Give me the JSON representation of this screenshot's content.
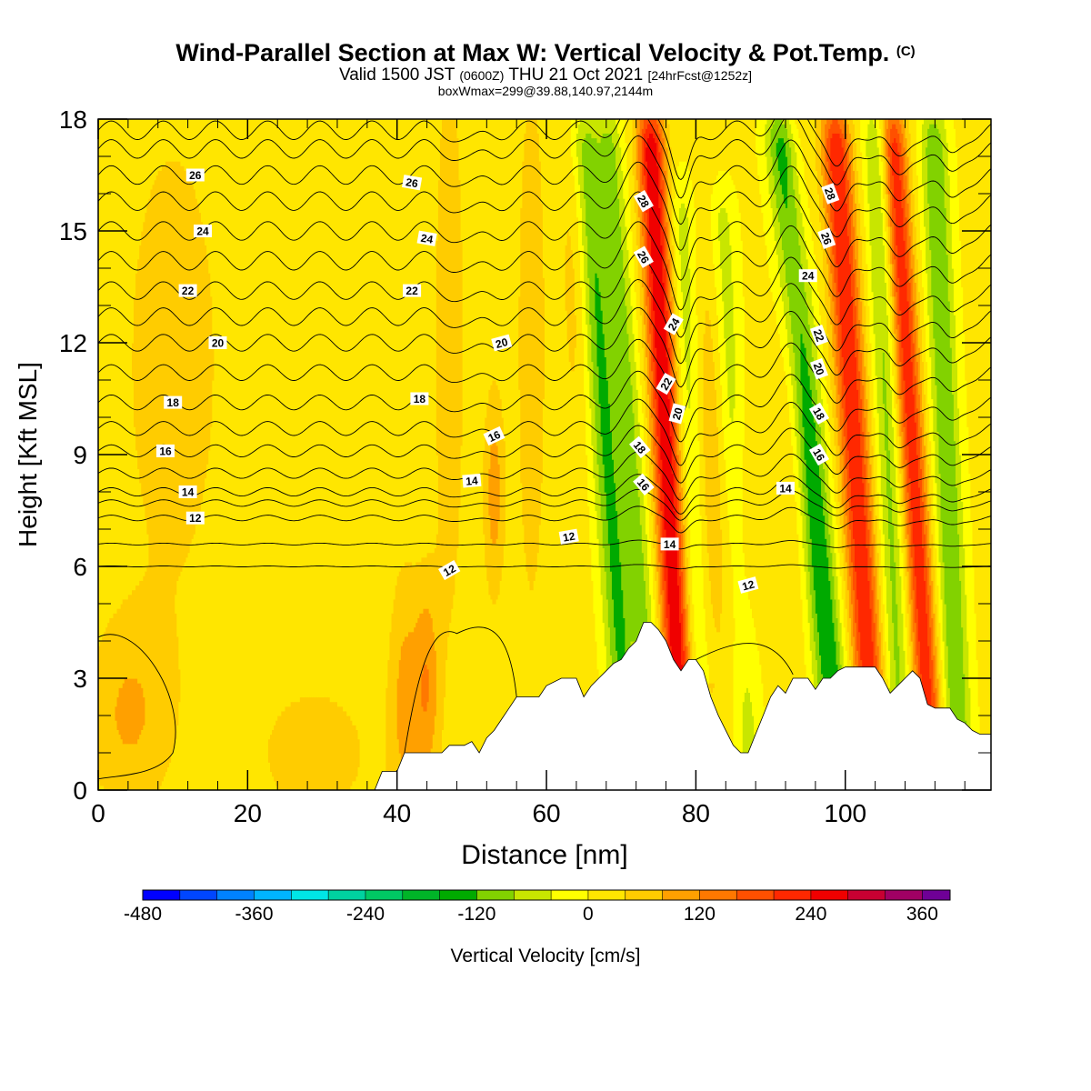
{
  "header": {
    "title": "Wind-Parallel Section at Max W: Vertical Velocity & Pot.Temp.",
    "title_mark": "(C)",
    "valid_prefix": "Valid 1500 JST",
    "valid_zulu": "(0600Z)",
    "valid_date": "THU 21 Oct 2021",
    "forecast_info": "[24hrFcst@1252z]",
    "box_info": "boxWmax=299@39.88,140.97,2144m"
  },
  "chart_data": {
    "type": "heatmap",
    "xlabel": "Distance [nm]",
    "ylabel": "Height [Kft MSL]",
    "xlim": [
      0,
      119.5
    ],
    "ylim": [
      0,
      18
    ],
    "x_ticks": [
      0,
      20,
      40,
      60,
      80,
      100
    ],
    "y_ticks": [
      0,
      3,
      6,
      9,
      12,
      15,
      18
    ],
    "colorbar": {
      "label": "Vertical Velocity [cm/s]",
      "range": [
        -480,
        390
      ],
      "tick_values": [
        -480,
        -360,
        -240,
        -120,
        0,
        120,
        240,
        360
      ],
      "tick_labels": [
        "-480",
        "-360",
        "-240",
        "-120",
        "0",
        "120",
        "240",
        "360"
      ],
      "bins": [
        {
          "from": -480,
          "to": -440,
          "color": "#0000ff"
        },
        {
          "from": -440,
          "to": -400,
          "color": "#0046ff"
        },
        {
          "from": -400,
          "to": -360,
          "color": "#0082ff"
        },
        {
          "from": -360,
          "to": -320,
          "color": "#00b4ff"
        },
        {
          "from": -320,
          "to": -280,
          "color": "#00e6e6"
        },
        {
          "from": -280,
          "to": -240,
          "color": "#00d2a0"
        },
        {
          "from": -240,
          "to": -200,
          "color": "#00c864"
        },
        {
          "from": -200,
          "to": -160,
          "color": "#00b428"
        },
        {
          "from": -160,
          "to": -120,
          "color": "#00aa00"
        },
        {
          "from": -120,
          "to": -80,
          "color": "#82d200"
        },
        {
          "from": -80,
          "to": -40,
          "color": "#c8e600"
        },
        {
          "from": -40,
          "to": 0,
          "color": "#ffff00"
        },
        {
          "from": 0,
          "to": 40,
          "color": "#ffe600"
        },
        {
          "from": 40,
          "to": 80,
          "color": "#ffcc00"
        },
        {
          "from": 80,
          "to": 120,
          "color": "#ffa000"
        },
        {
          "from": 120,
          "to": 160,
          "color": "#ff7800"
        },
        {
          "from": 160,
          "to": 200,
          "color": "#ff5000"
        },
        {
          "from": 200,
          "to": 240,
          "color": "#ff2800"
        },
        {
          "from": 240,
          "to": 280,
          "color": "#f00000"
        },
        {
          "from": 280,
          "to": 320,
          "color": "#c80032"
        },
        {
          "from": 320,
          "to": 360,
          "color": "#a00064"
        },
        {
          "from": 360,
          "to": 390,
          "color": "#6e0096"
        }
      ]
    },
    "terrain": [
      [
        0,
        0
      ],
      [
        37,
        0
      ],
      [
        38,
        0.5
      ],
      [
        40,
        0.5
      ],
      [
        41,
        1
      ],
      [
        46,
        1
      ],
      [
        47,
        1.2
      ],
      [
        49,
        1.2
      ],
      [
        50,
        1.3
      ],
      [
        51,
        1
      ],
      [
        52,
        1.4
      ],
      [
        53,
        1.6
      ],
      [
        54,
        1.9
      ],
      [
        55,
        2.2
      ],
      [
        56,
        2.5
      ],
      [
        59,
        2.5
      ],
      [
        60,
        2.8
      ],
      [
        62,
        3
      ],
      [
        64,
        3
      ],
      [
        65,
        2.5
      ],
      [
        66,
        2.8
      ],
      [
        67,
        3
      ],
      [
        68,
        3.2
      ],
      [
        69,
        3.4
      ],
      [
        70,
        3.5
      ],
      [
        71,
        3.8
      ],
      [
        72,
        4
      ],
      [
        73,
        4.5
      ],
      [
        74,
        4.5
      ],
      [
        75,
        4.3
      ],
      [
        76,
        4
      ],
      [
        77,
        3.5
      ],
      [
        78,
        3.2
      ],
      [
        79,
        3.5
      ],
      [
        80,
        3.5
      ],
      [
        81,
        3.2
      ],
      [
        82,
        2.5
      ],
      [
        83,
        2
      ],
      [
        84,
        1.6
      ],
      [
        85,
        1.2
      ],
      [
        86,
        1
      ],
      [
        87,
        1
      ],
      [
        88,
        1.5
      ],
      [
        89,
        2
      ],
      [
        90,
        2.5
      ],
      [
        91,
        2.8
      ],
      [
        92,
        2.6
      ],
      [
        93,
        3
      ],
      [
        95,
        3
      ],
      [
        96,
        2.7
      ],
      [
        97,
        3
      ],
      [
        98,
        3
      ],
      [
        99,
        3.2
      ],
      [
        100,
        3.3
      ],
      [
        104,
        3.3
      ],
      [
        105,
        3
      ],
      [
        106,
        2.6
      ],
      [
        107,
        2.8
      ],
      [
        108,
        3
      ],
      [
        109,
        3.2
      ],
      [
        110,
        3
      ],
      [
        111,
        2.3
      ],
      [
        112,
        2.2
      ],
      [
        114,
        2.2
      ],
      [
        115,
        1.9
      ],
      [
        116,
        1.8
      ],
      [
        117,
        1.6
      ],
      [
        118,
        1.5
      ],
      [
        119.5,
        1.5
      ]
    ],
    "w_features": [
      {
        "x": 4,
        "z": 2.0,
        "sx": 4,
        "sz": 1.8,
        "w": 70
      },
      {
        "x": 10,
        "z": 11.5,
        "sx": 6,
        "sz": 6,
        "w": 45
      },
      {
        "x": 29,
        "z": 1.0,
        "sx": 6,
        "sz": 1.5,
        "w": 50
      },
      {
        "x": 41,
        "z": 2.5,
        "sx": 1.5,
        "sz": 2.5,
        "w": 80
      },
      {
        "x": 44,
        "z": 2.8,
        "sx": 1.2,
        "sz": 2,
        "w": 100
      },
      {
        "x": 47,
        "z": 12,
        "sx": 1.5,
        "sz": 6,
        "w": 60
      },
      {
        "x": 53,
        "z": 8,
        "sx": 1,
        "sz": 2,
        "w": 90
      },
      {
        "x": 58,
        "z": 12,
        "sx": 1.5,
        "sz": 6,
        "w": 55
      },
      {
        "x": 64,
        "z": 15,
        "sx": 1.5,
        "sz": 4,
        "w": 55
      },
      {
        "x": 82,
        "z": 9,
        "sx": 1.5,
        "sz": 5,
        "w": 65
      },
      {
        "x": 86,
        "z": 6,
        "sx": 1.5,
        "sz": 3,
        "w": 60
      },
      {
        "x": 93,
        "z": 13,
        "sx": 1.5,
        "sz": 6,
        "w": 50
      }
    ],
    "w_bands": [
      {
        "x_base": 70,
        "z_top": 17,
        "slope": -0.35,
        "sx": 1.4,
        "w": -140
      },
      {
        "x_base": 73,
        "z_top": 17,
        "slope": -0.35,
        "sx": 1.2,
        "w": -100
      },
      {
        "x_base": 77.5,
        "z_top": 17,
        "slope": -0.25,
        "sx": 1.3,
        "w": 270
      },
      {
        "x_base": 80.5,
        "z_top": 15,
        "slope": -0.2,
        "sx": 1.2,
        "w": -70
      },
      {
        "x_base": 87,
        "z_top": 15,
        "slope": -0.25,
        "sx": 1.3,
        "w": -80
      },
      {
        "x_base": 98,
        "z_top": 17,
        "slope": -0.45,
        "sx": 1.5,
        "w": -170
      },
      {
        "x_base": 103,
        "z_top": 17,
        "slope": -0.3,
        "sx": 1.4,
        "w": 230
      },
      {
        "x_base": 107,
        "z_top": 17,
        "slope": -0.2,
        "sx": 1.2,
        "w": -100
      },
      {
        "x_base": 111,
        "z_top": 17,
        "slope": -0.3,
        "sx": 1.2,
        "w": 220
      },
      {
        "x_base": 115,
        "z_top": 17,
        "slope": -0.2,
        "sx": 1.3,
        "w": -130
      }
    ],
    "theta_contours": [
      {
        "base_z": 6.0,
        "amp": 0.05
      },
      {
        "base_z": 6.6,
        "amp": 0.1
      },
      {
        "base_z": 7.3,
        "amp": 0.3,
        "label": "12",
        "label_x": 13
      },
      {
        "base_z": 7.7,
        "amp": 0.35
      },
      {
        "base_z": 8.0,
        "amp": 0.45,
        "label": "14",
        "label_x": 12
      },
      {
        "base_z": 8.5,
        "amp": 0.55
      },
      {
        "base_z": 9.1,
        "amp": 0.65,
        "label": "16",
        "label_x": 9
      },
      {
        "base_z": 9.7,
        "amp": 0.75
      },
      {
        "base_z": 10.4,
        "amp": 0.8,
        "label": "18",
        "label_x": 10
      },
      {
        "base_z": 11.2,
        "amp": 0.85
      },
      {
        "base_z": 12.0,
        "amp": 0.9,
        "label": "20",
        "label_x": 16
      },
      {
        "base_z": 12.7,
        "amp": 0.95
      },
      {
        "base_z": 13.4,
        "amp": 0.95,
        "label": "22",
        "label_x": 12
      },
      {
        "base_z": 14.2,
        "amp": 1.0
      },
      {
        "base_z": 15.0,
        "amp": 1.0,
        "label": "24",
        "label_x": 14
      },
      {
        "base_z": 15.8,
        "amp": 1.0
      },
      {
        "base_z": 16.5,
        "amp": 1.0,
        "label": "26",
        "label_x": 13
      },
      {
        "base_z": 17.2,
        "amp": 1.0
      },
      {
        "base_z": 17.7,
        "amp": 1.0
      }
    ],
    "contour_labels": [
      {
        "text": "26",
        "x": 13,
        "z": 16.5,
        "angle": 0
      },
      {
        "text": "24",
        "x": 14,
        "z": 15.0,
        "angle": 0
      },
      {
        "text": "22",
        "x": 12,
        "z": 13.4,
        "angle": 0
      },
      {
        "text": "20",
        "x": 16,
        "z": 12.0,
        "angle": 0
      },
      {
        "text": "18",
        "x": 10,
        "z": 10.4,
        "angle": 0
      },
      {
        "text": "16",
        "x": 9,
        "z": 9.1,
        "angle": 0
      },
      {
        "text": "14",
        "x": 12,
        "z": 8.0,
        "angle": 0
      },
      {
        "text": "12",
        "x": 13,
        "z": 7.3,
        "angle": 0
      },
      {
        "text": "26",
        "x": 42,
        "z": 16.3,
        "angle": 10
      },
      {
        "text": "24",
        "x": 44,
        "z": 14.8,
        "angle": 10
      },
      {
        "text": "22",
        "x": 42,
        "z": 13.4,
        "angle": 0
      },
      {
        "text": "20",
        "x": 54,
        "z": 12.0,
        "angle": -15
      },
      {
        "text": "18",
        "x": 43,
        "z": 10.5,
        "angle": 0
      },
      {
        "text": "16",
        "x": 53,
        "z": 9.5,
        "angle": -25
      },
      {
        "text": "14",
        "x": 50,
        "z": 8.3,
        "angle": -5
      },
      {
        "text": "12",
        "x": 63,
        "z": 6.8,
        "angle": -10
      },
      {
        "text": "12",
        "x": 47,
        "z": 5.9,
        "angle": -30
      },
      {
        "text": "28",
        "x": 73,
        "z": 15.8,
        "angle": 60
      },
      {
        "text": "26",
        "x": 73,
        "z": 14.3,
        "angle": 60
      },
      {
        "text": "24",
        "x": 77,
        "z": 12.5,
        "angle": -60
      },
      {
        "text": "22",
        "x": 76,
        "z": 10.9,
        "angle": -60
      },
      {
        "text": "20",
        "x": 77.5,
        "z": 10.1,
        "angle": -75
      },
      {
        "text": "18",
        "x": 72.5,
        "z": 9.2,
        "angle": 50
      },
      {
        "text": "16",
        "x": 73,
        "z": 8.2,
        "angle": 50
      },
      {
        "text": "14",
        "x": 76.5,
        "z": 6.6,
        "angle": 0
      },
      {
        "text": "12",
        "x": 87,
        "z": 5.5,
        "angle": -15
      },
      {
        "text": "14",
        "x": 92,
        "z": 8.1,
        "angle": 0
      },
      {
        "text": "28",
        "x": 98,
        "z": 16.0,
        "angle": 70
      },
      {
        "text": "26",
        "x": 97.5,
        "z": 14.8,
        "angle": 70
      },
      {
        "text": "24",
        "x": 95,
        "z": 13.8,
        "angle": 0
      },
      {
        "text": "22",
        "x": 96.5,
        "z": 12.2,
        "angle": 70
      },
      {
        "text": "20",
        "x": 96.5,
        "z": 11.3,
        "angle": 70
      },
      {
        "text": "18",
        "x": 96.5,
        "z": 10.1,
        "angle": 60
      },
      {
        "text": "16",
        "x": 96.5,
        "z": 9.0,
        "angle": 60
      }
    ]
  }
}
